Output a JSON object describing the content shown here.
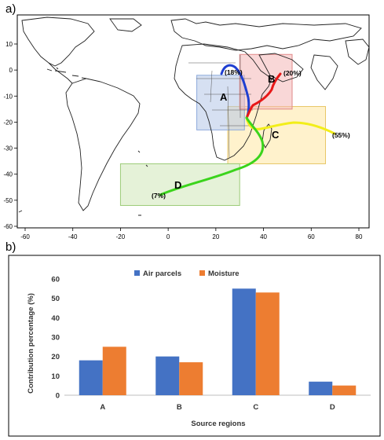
{
  "panel_a": {
    "label": "a)",
    "x_ticks": [
      "-60",
      "-40",
      "-20",
      "0",
      "20",
      "40",
      "60",
      "80"
    ],
    "y_ticks": [
      "10",
      "0",
      "-10",
      "-20",
      "-30",
      "-40",
      "-50",
      "-60"
    ],
    "regions": [
      {
        "id": "A",
        "label": "A",
        "pct": "(18%)",
        "fill": "#b4c6e7",
        "stroke": "#8eaadb"
      },
      {
        "id": "B",
        "label": "B",
        "pct": "(20%)",
        "fill": "#f4b6b6",
        "stroke": "#e08a8a"
      },
      {
        "id": "C",
        "label": "C",
        "pct": "(55%)",
        "fill": "#ffe7a3",
        "stroke": "#e8c766"
      },
      {
        "id": "D",
        "label": "D",
        "pct": "(7%)",
        "fill": "#cfe8b8",
        "stroke": "#9ccc79"
      }
    ],
    "track_colors": {
      "A": "#1f3fd1",
      "B": "#e81818",
      "C": "#f2ee1a",
      "D": "#3bd41c"
    }
  },
  "panel_b": {
    "label": "b)"
  },
  "chart_data": {
    "type": "bar",
    "categories": [
      "A",
      "B",
      "C",
      "D"
    ],
    "series": [
      {
        "name": "Air parcels",
        "values": [
          18,
          20,
          55,
          7
        ],
        "color": "#4472c4"
      },
      {
        "name": "Moisture",
        "values": [
          25,
          17,
          53,
          5
        ],
        "color": "#ed7d31"
      }
    ],
    "xlabel": "Source regions",
    "ylabel": "Contribution percentage (%)",
    "ylim": [
      0,
      60
    ],
    "yticks": [
      0,
      10,
      20,
      30,
      40,
      50,
      60
    ],
    "legend_position": "top-center",
    "grid": false
  }
}
